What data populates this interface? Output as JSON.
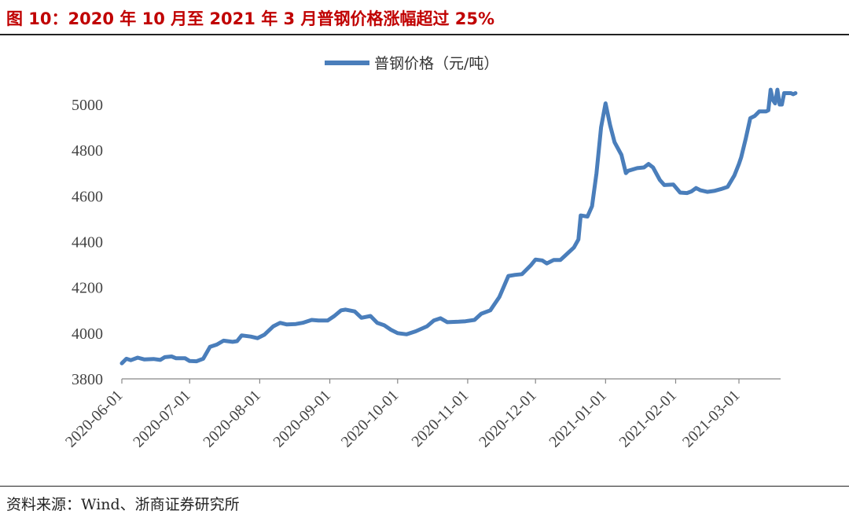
{
  "figure": {
    "title": "图 10：2020 年 10 月至 2021 年 3 月普钢价格涨幅超过 25%",
    "source": "资料来源：Wind、浙商证券研究所"
  },
  "chart_data": {
    "type": "line",
    "legend": "普钢价格（元/吨）",
    "legend_position": "top-center",
    "line_color": "#4a7ebb",
    "ylim": [
      3800,
      5000
    ],
    "yticks": [
      3800,
      4000,
      4200,
      4400,
      4600,
      4800,
      5000
    ],
    "xlim": [
      "2020-06-01",
      "2021-03-18"
    ],
    "xticks": [
      "2020-06-01",
      "2020-07-01",
      "2020-08-01",
      "2020-09-01",
      "2020-10-01",
      "2020-11-01",
      "2020-12-01",
      "2021-01-01",
      "2021-02-01",
      "2021-03-01"
    ],
    "grid": false,
    "series": [
      {
        "name": "普钢价格",
        "points": [
          [
            "2020-06-01",
            3868
          ],
          [
            "2020-06-03",
            3888
          ],
          [
            "2020-06-05",
            3882
          ],
          [
            "2020-06-08",
            3893
          ],
          [
            "2020-06-11",
            3885
          ],
          [
            "2020-06-15",
            3887
          ],
          [
            "2020-06-18",
            3883
          ],
          [
            "2020-06-20",
            3895
          ],
          [
            "2020-06-23",
            3898
          ],
          [
            "2020-06-25",
            3890
          ],
          [
            "2020-06-29",
            3890
          ],
          [
            "2020-07-01",
            3878
          ],
          [
            "2020-07-04",
            3877
          ],
          [
            "2020-07-07",
            3888
          ],
          [
            "2020-07-10",
            3940
          ],
          [
            "2020-07-13",
            3950
          ],
          [
            "2020-07-16",
            3967
          ],
          [
            "2020-07-20",
            3962
          ],
          [
            "2020-07-22",
            3965
          ],
          [
            "2020-07-24",
            3990
          ],
          [
            "2020-07-28",
            3985
          ],
          [
            "2020-07-31",
            3978
          ],
          [
            "2020-08-03",
            3993
          ],
          [
            "2020-08-07",
            4030
          ],
          [
            "2020-08-10",
            4045
          ],
          [
            "2020-08-13",
            4038
          ],
          [
            "2020-08-17",
            4040
          ],
          [
            "2020-08-20",
            4045
          ],
          [
            "2020-08-24",
            4058
          ],
          [
            "2020-08-27",
            4055
          ],
          [
            "2020-08-31",
            4055
          ],
          [
            "2020-09-03",
            4075
          ],
          [
            "2020-09-06",
            4100
          ],
          [
            "2020-09-08",
            4103
          ],
          [
            "2020-09-12",
            4095
          ],
          [
            "2020-09-15",
            4067
          ],
          [
            "2020-09-19",
            4075
          ],
          [
            "2020-09-22",
            4045
          ],
          [
            "2020-09-25",
            4035
          ],
          [
            "2020-09-28",
            4015
          ],
          [
            "2020-10-01",
            4000
          ],
          [
            "2020-10-05",
            3995
          ],
          [
            "2020-10-09",
            4008
          ],
          [
            "2020-10-14",
            4030
          ],
          [
            "2020-10-17",
            4055
          ],
          [
            "2020-10-20",
            4065
          ],
          [
            "2020-10-23",
            4048
          ],
          [
            "2020-10-28",
            4050
          ],
          [
            "2020-10-31",
            4052
          ],
          [
            "2020-11-04",
            4058
          ],
          [
            "2020-11-07",
            4085
          ],
          [
            "2020-11-11",
            4100
          ],
          [
            "2020-11-15",
            4158
          ],
          [
            "2020-11-19",
            4250
          ],
          [
            "2020-11-22",
            4255
          ],
          [
            "2020-11-25",
            4258
          ],
          [
            "2020-11-29",
            4298
          ],
          [
            "2020-12-01",
            4322
          ],
          [
            "2020-12-04",
            4318
          ],
          [
            "2020-12-06",
            4305
          ],
          [
            "2020-12-09",
            4320
          ],
          [
            "2020-12-12",
            4320
          ],
          [
            "2020-12-14",
            4338
          ],
          [
            "2020-12-18",
            4375
          ],
          [
            "2020-12-20",
            4410
          ],
          [
            "2020-12-21",
            4515
          ],
          [
            "2020-12-24",
            4510
          ],
          [
            "2020-12-26",
            4555
          ],
          [
            "2020-12-28",
            4700
          ],
          [
            "2020-12-30",
            4900
          ],
          [
            "2021-01-01",
            5005
          ],
          [
            "2021-01-03",
            4910
          ],
          [
            "2021-01-05",
            4835
          ],
          [
            "2021-01-08",
            4780
          ],
          [
            "2021-01-10",
            4700
          ],
          [
            "2021-01-11",
            4710
          ],
          [
            "2021-01-15",
            4722
          ],
          [
            "2021-01-18",
            4725
          ],
          [
            "2021-01-20",
            4740
          ],
          [
            "2021-01-22",
            4725
          ],
          [
            "2021-01-25",
            4670
          ],
          [
            "2021-01-27",
            4648
          ],
          [
            "2021-01-31",
            4650
          ],
          [
            "2021-02-03",
            4615
          ],
          [
            "2021-02-06",
            4613
          ],
          [
            "2021-02-08",
            4620
          ],
          [
            "2021-02-10",
            4635
          ],
          [
            "2021-02-12",
            4625
          ],
          [
            "2021-02-15",
            4618
          ],
          [
            "2021-02-18",
            4622
          ],
          [
            "2021-02-21",
            4630
          ],
          [
            "2021-02-24",
            4640
          ],
          [
            "2021-02-27",
            4690
          ],
          [
            "2021-03-01",
            4740
          ],
          [
            "2021-03-02",
            4770
          ],
          [
            "2021-03-04",
            4850
          ],
          [
            "2021-03-06",
            4940
          ],
          [
            "2021-03-08",
            4950
          ],
          [
            "2021-03-10",
            4970
          ],
          [
            "2021-03-13",
            4970
          ],
          [
            "2021-03-14",
            4975
          ],
          [
            "2021-03-15",
            5065
          ],
          [
            "2021-03-16",
            5020
          ],
          [
            "2021-03-17",
            5005
          ],
          [
            "2021-03-18",
            5065
          ],
          [
            "2021-03-19",
            5000
          ],
          [
            "2021-03-20",
            5000
          ],
          [
            "2021-03-21",
            5050
          ],
          [
            "2021-03-24",
            5050
          ],
          [
            "2021-03-25",
            5045
          ],
          [
            "2021-03-26",
            5050
          ]
        ]
      }
    ]
  }
}
